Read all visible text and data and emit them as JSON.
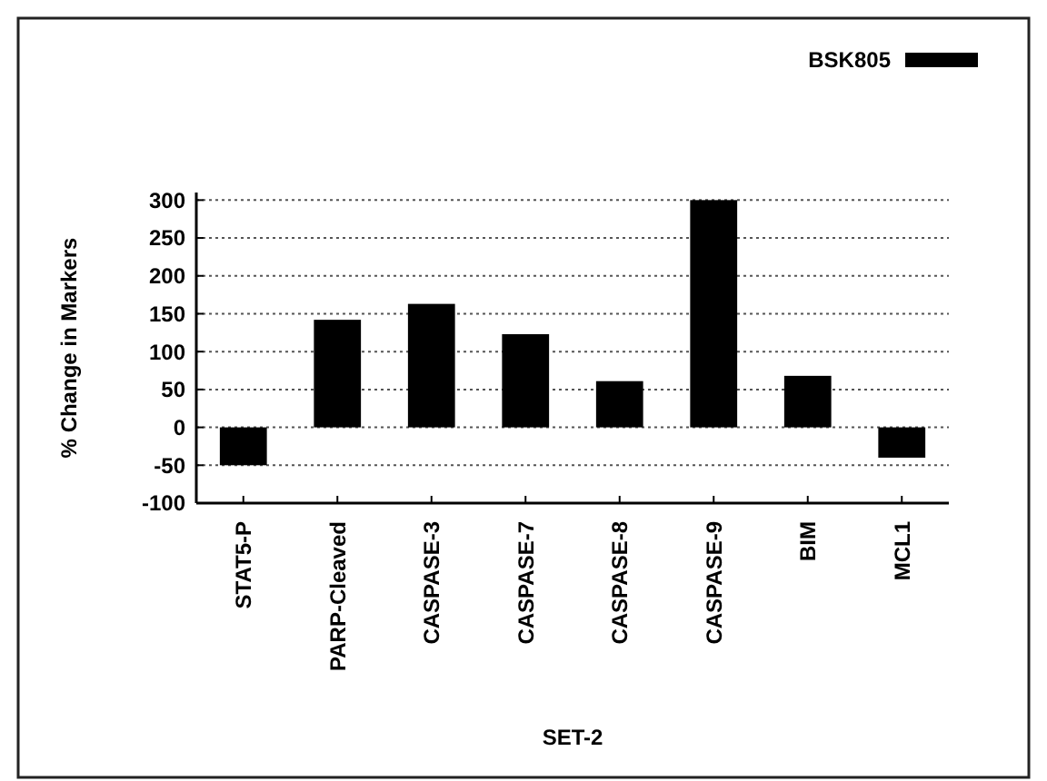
{
  "chart_data": {
    "type": "bar",
    "xlabel": "SET-2",
    "ylabel": "% Change in Markers",
    "categories": [
      "STAT5-P",
      "PARP-Cleaved",
      "CASPASE-3",
      "CASPASE-7",
      "CASPASE-8",
      "CASPASE-9",
      "BIM",
      "MCL1"
    ],
    "series": [
      {
        "name": "BSK805",
        "color": "#000000",
        "values": [
          -50,
          142,
          163,
          123,
          61,
          300,
          68,
          -40
        ]
      }
    ],
    "ylim": [
      -100,
      310
    ],
    "yticks": [
      -100,
      -50,
      0,
      50,
      100,
      150,
      200,
      250,
      300
    ],
    "grid": "y",
    "legend": "top right"
  }
}
